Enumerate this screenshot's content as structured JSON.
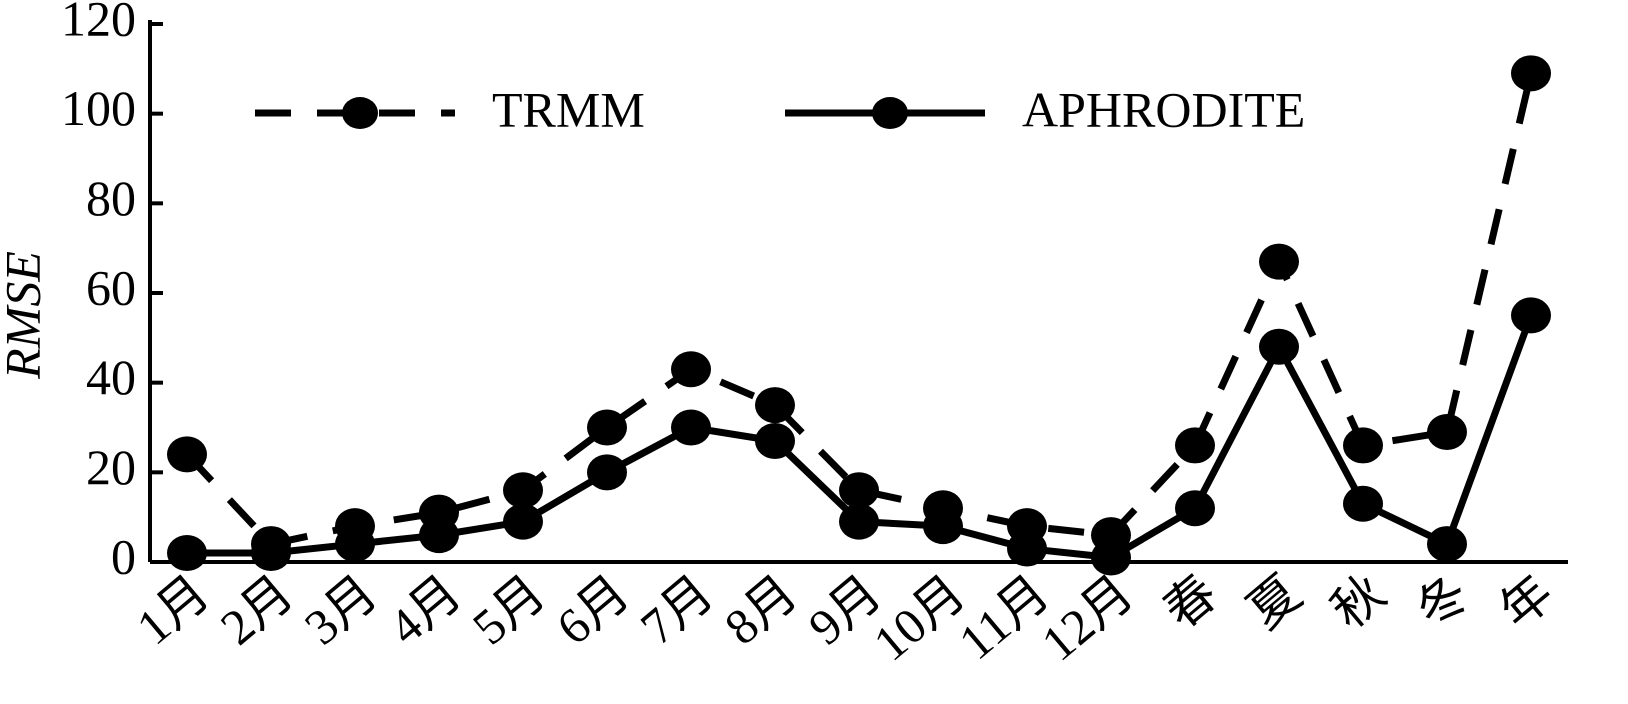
{
  "chart_data": {
    "type": "line",
    "y_label": "RMSE",
    "categories": [
      "1月",
      "2月",
      "3月",
      "4月",
      "5月",
      "6月",
      "7月",
      "8月",
      "9月",
      "10月",
      "11月",
      "12月",
      "春",
      "夏",
      "秋",
      "冬",
      "年"
    ],
    "series": [
      {
        "name": "TRMM",
        "color": "#000000",
        "linestyle": "dashed",
        "values": [
          24,
          4,
          8,
          11,
          16,
          30,
          43,
          35,
          16,
          12,
          8,
          6,
          26,
          67,
          26,
          29,
          109
        ]
      },
      {
        "name": "APHRODITE",
        "color": "#000000",
        "linestyle": "solid",
        "values": [
          2,
          2,
          4,
          6,
          9,
          20,
          30,
          27,
          9,
          8,
          3,
          1,
          12,
          48,
          13,
          4,
          55
        ]
      }
    ],
    "ylim": [
      0,
      120
    ],
    "yticks": [
      0,
      20,
      40,
      60,
      80,
      100,
      120
    ],
    "legend": "upper center",
    "grid": false
  }
}
